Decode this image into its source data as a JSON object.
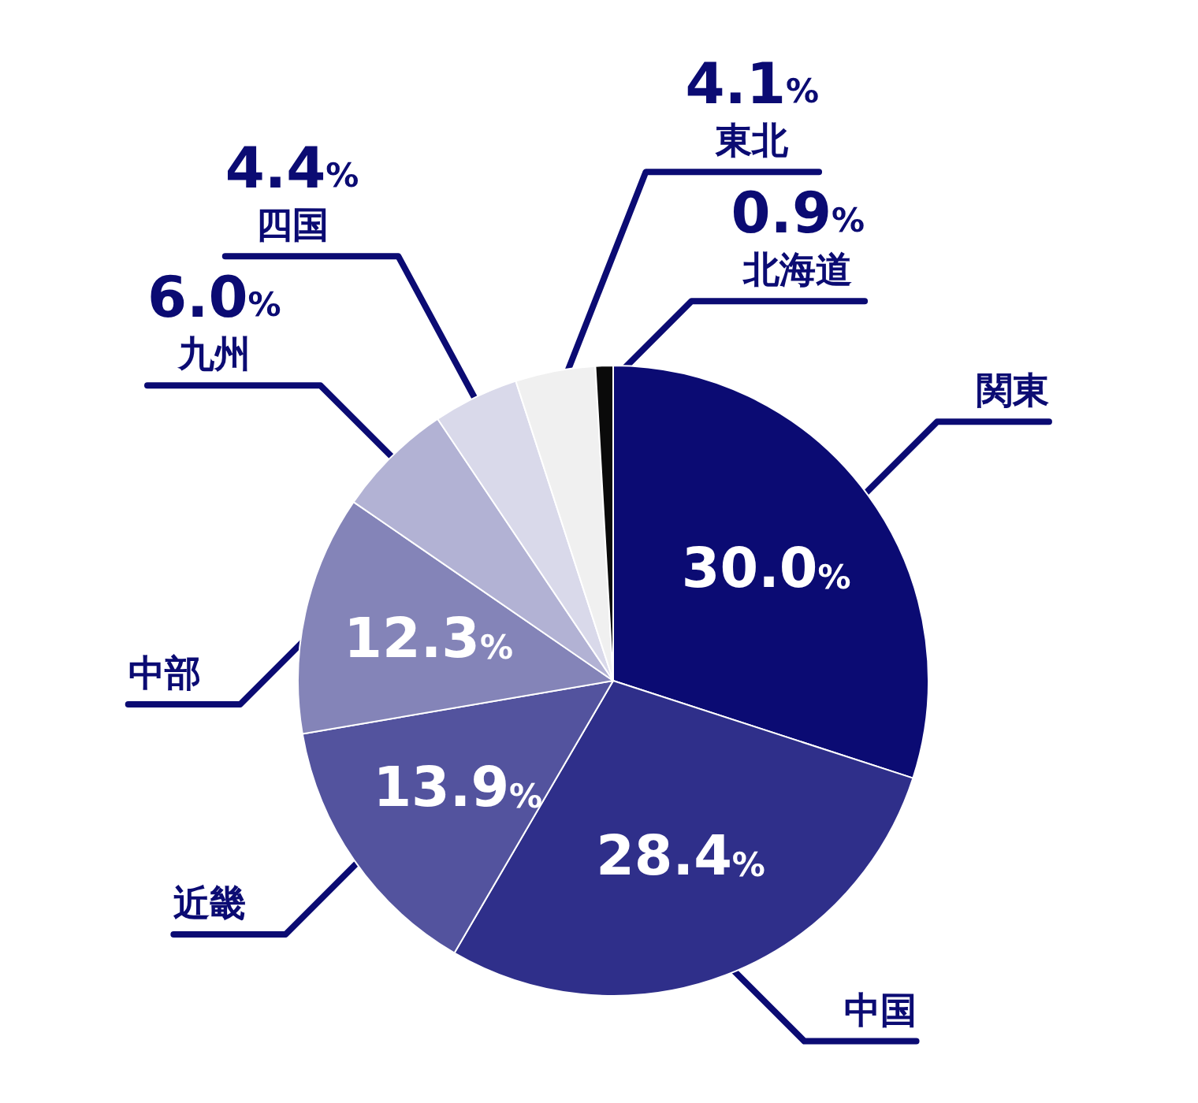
{
  "chart_data": {
    "type": "pie",
    "categories": [
      "関東",
      "中国",
      "近畿",
      "中部",
      "九州",
      "四国",
      "東北",
      "北海道"
    ],
    "values": [
      30.0,
      28.4,
      13.9,
      12.3,
      6.0,
      4.4,
      4.1,
      0.9
    ],
    "colors": [
      "#0b0b73",
      "#2f2f8a",
      "#53539e",
      "#8484b8",
      "#b2b2d4",
      "#d9d9ea",
      "#f0f0f0",
      "#0a0a0a"
    ],
    "value_labels": [
      "30.0%",
      "28.4%",
      "13.9%",
      "12.3%",
      "6.0%",
      "4.4%",
      "4.1%",
      "0.9%"
    ]
  }
}
